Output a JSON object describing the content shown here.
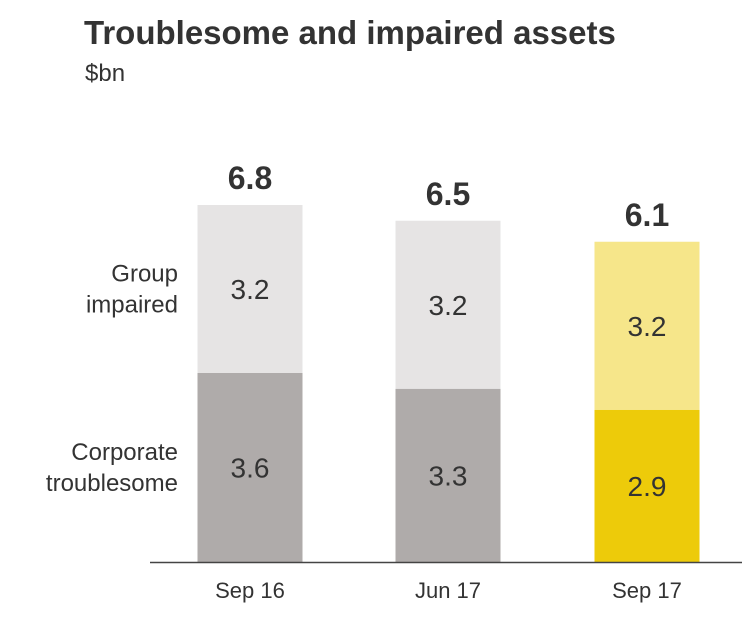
{
  "chart_data": {
    "type": "bar",
    "stacked": true,
    "title": "Troublesome and impaired assets",
    "subtitle": "$bn",
    "categories": [
      "Sep 16",
      "Jun 17",
      "Sep 17"
    ],
    "series": [
      {
        "name": "Corporate troublesome",
        "legend_lines": [
          "Corporate",
          "troublesome"
        ],
        "values": [
          3.6,
          3.3,
          2.9
        ],
        "value_labels": [
          "3.6",
          "3.3",
          "2.9"
        ],
        "colors": [
          "#AFABAA",
          "#AFABAA",
          "#EDCB0A"
        ]
      },
      {
        "name": "Group impaired",
        "legend_lines": [
          "Group",
          "impaired"
        ],
        "values": [
          3.2,
          3.2,
          3.2
        ],
        "value_labels": [
          "3.2",
          "3.2",
          "3.2"
        ],
        "colors": [
          "#E6E4E4",
          "#E6E4E4",
          "#F6E68A"
        ]
      }
    ],
    "totals": [
      6.8,
      6.5,
      6.1
    ],
    "total_labels": [
      "6.8",
      "6.5",
      "6.1"
    ],
    "ylim": [
      0,
      6.8
    ],
    "grid": false,
    "legend": "left",
    "xlabel": "",
    "ylabel": ""
  }
}
